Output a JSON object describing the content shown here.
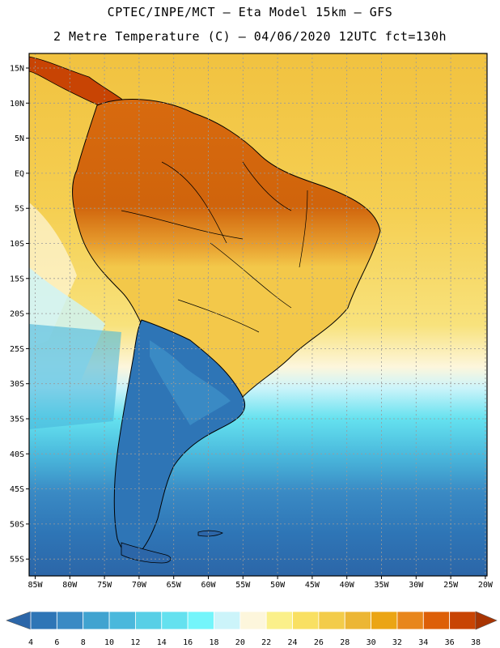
{
  "header": {
    "line1": "CPTEC/INPE/MCT –  Eta Model 15km – GFS",
    "line2": "2 Metre Temperature (C) – 04/06/2020 12UTC fct=130h"
  },
  "axes": {
    "lat_labels": [
      "15N",
      "10N",
      "5N",
      "EQ",
      "5S",
      "10S",
      "15S",
      "20S",
      "25S",
      "30S",
      "35S",
      "40S",
      "45S",
      "50S",
      "55S"
    ],
    "lon_labels": [
      "85W",
      "80W",
      "75W",
      "70W",
      "65W",
      "60W",
      "55W",
      "50W",
      "45W",
      "40W",
      "35W",
      "30W",
      "25W",
      "20W"
    ]
  },
  "colorbar": {
    "labels": [
      "4",
      "6",
      "8",
      "10",
      "12",
      "14",
      "16",
      "18",
      "20",
      "22",
      "24",
      "26",
      "28",
      "30",
      "32",
      "34",
      "36",
      "38"
    ],
    "colors": [
      "#2c66a8",
      "#2e75b6",
      "#3a8ac4",
      "#40a3d0",
      "#4ab8dc",
      "#58cfe6",
      "#64e1ef",
      "#74f5fb",
      "#ccf4fa",
      "#fdf6dc",
      "#fbf08a",
      "#f9e062",
      "#f3cc4a",
      "#ecb634",
      "#eba514",
      "#e8861c",
      "#dd5f08",
      "#c84404",
      "#a83402"
    ]
  },
  "palette": {
    "ocean_yellow": "#f4c84a",
    "ocean_light": "#fdf6dc",
    "ocean_cyan": "#58cfe6",
    "ocean_blue": "#2e75b6",
    "land_hot": "#d0640c"
  }
}
